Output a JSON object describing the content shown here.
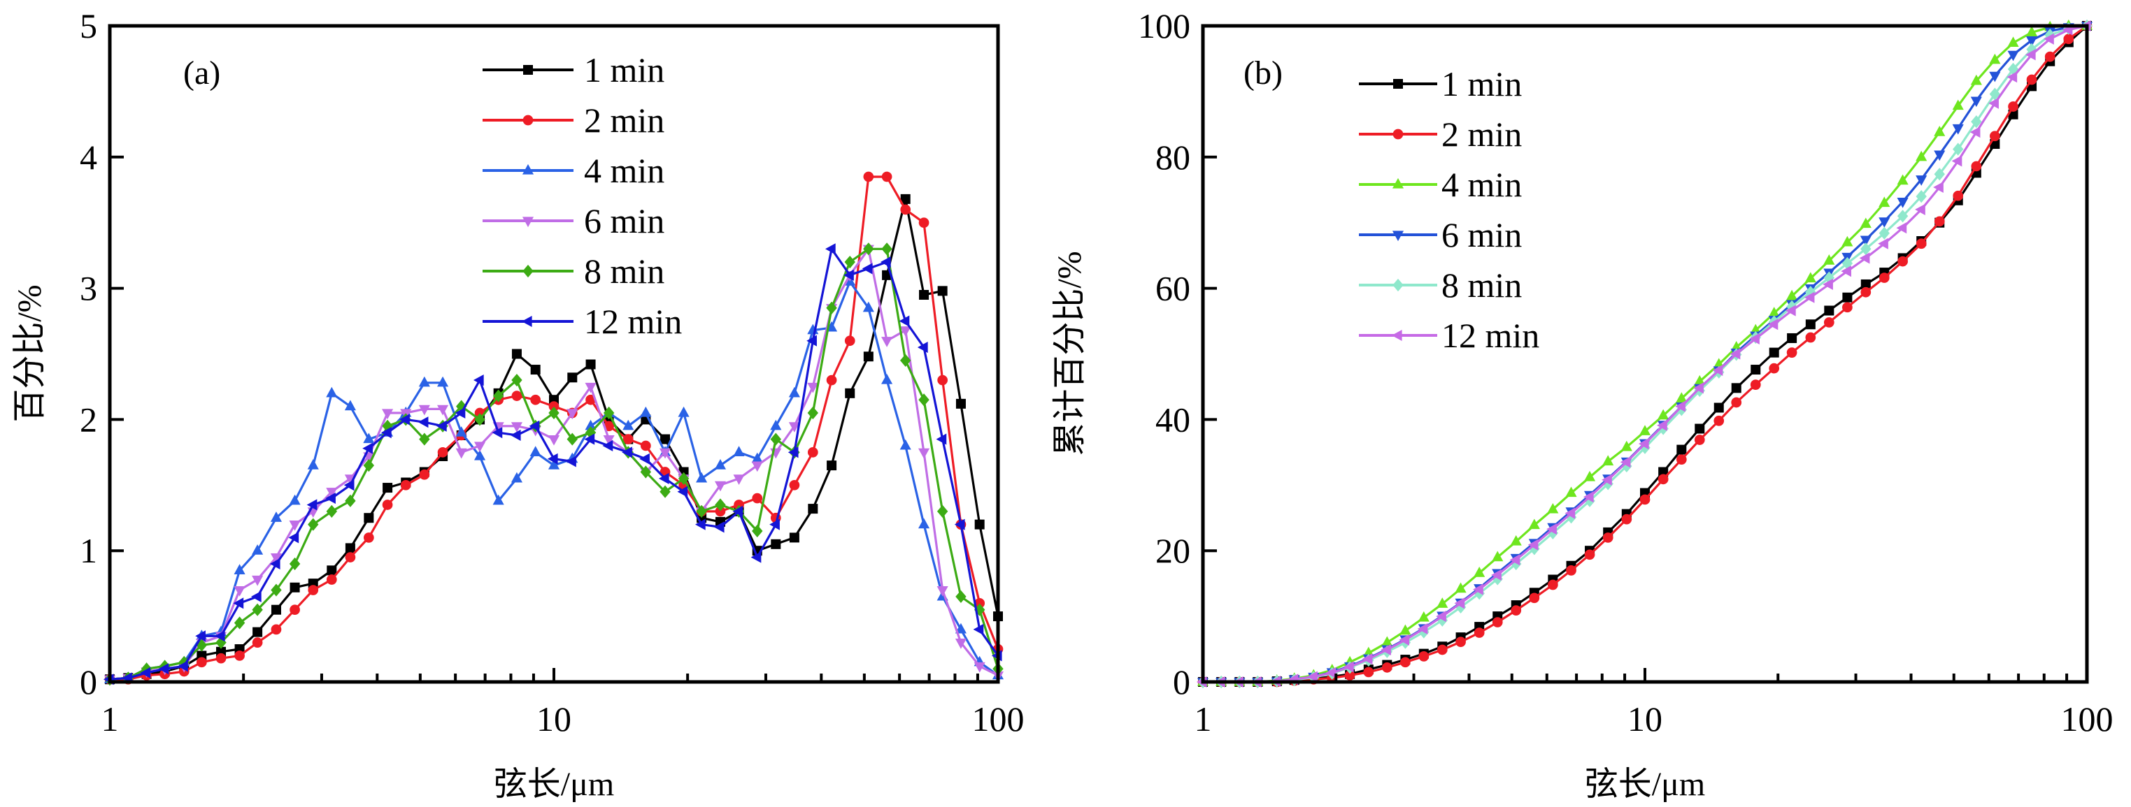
{
  "chart_data": [
    {
      "type": "line",
      "panel_label": "(a)",
      "title": "",
      "xlabel": "弦长/μm",
      "ylabel": "百分比/%",
      "xscale": "log",
      "xlim": [
        1,
        100
      ],
      "ylim": [
        0,
        5
      ],
      "xticks": [
        "1",
        "10",
        "100"
      ],
      "yticks": [
        "0",
        "1",
        "2",
        "3",
        "4",
        "5"
      ],
      "grid": false,
      "legend_position": "top-center",
      "x": [
        1.0,
        1.1,
        1.21,
        1.33,
        1.47,
        1.61,
        1.78,
        1.96,
        2.15,
        2.37,
        2.61,
        2.87,
        3.16,
        3.48,
        3.83,
        4.22,
        4.64,
        5.11,
        5.62,
        6.19,
        6.81,
        7.5,
        8.25,
        9.09,
        10.0,
        11.0,
        12.1,
        13.3,
        14.7,
        16.1,
        17.8,
        19.6,
        21.5,
        23.7,
        26.1,
        28.7,
        31.6,
        34.8,
        38.3,
        42.2,
        46.4,
        51.1,
        56.2,
        61.9,
        68.1,
        75.0,
        82.5,
        90.9,
        100.0
      ],
      "series": [
        {
          "name": "1 min",
          "color": "#000000",
          "marker": "square",
          "values": [
            0.02,
            0.03,
            0.06,
            0.08,
            0.12,
            0.2,
            0.23,
            0.25,
            0.38,
            0.55,
            0.72,
            0.75,
            0.85,
            1.02,
            1.25,
            1.48,
            1.52,
            1.6,
            1.72,
            1.88,
            2.0,
            2.2,
            2.5,
            2.38,
            2.15,
            2.32,
            2.42,
            2.0,
            1.85,
            2.0,
            1.85,
            1.6,
            1.25,
            1.22,
            1.3,
            1.0,
            1.05,
            1.1,
            1.32,
            1.65,
            2.2,
            2.48,
            3.1,
            3.68,
            2.95,
            2.98,
            2.12,
            1.2,
            0.5
          ]
        },
        {
          "name": "2 min",
          "color": "#ee1c25",
          "marker": "circle",
          "values": [
            0.02,
            0.02,
            0.05,
            0.06,
            0.08,
            0.15,
            0.18,
            0.2,
            0.3,
            0.4,
            0.55,
            0.7,
            0.78,
            0.95,
            1.1,
            1.35,
            1.5,
            1.58,
            1.75,
            1.88,
            2.05,
            2.15,
            2.18,
            2.15,
            2.1,
            2.05,
            2.15,
            1.95,
            1.85,
            1.8,
            1.6,
            1.5,
            1.3,
            1.3,
            1.35,
            1.4,
            1.25,
            1.5,
            1.75,
            2.3,
            2.6,
            3.85,
            3.85,
            3.6,
            3.5,
            2.3,
            1.2,
            0.6,
            0.25
          ]
        },
        {
          "name": "4 min",
          "color": "#2a62e6",
          "marker": "triangle-up",
          "values": [
            0.02,
            0.03,
            0.1,
            0.12,
            0.15,
            0.35,
            0.38,
            0.85,
            1.0,
            1.25,
            1.38,
            1.65,
            2.2,
            2.1,
            1.85,
            1.9,
            2.05,
            2.28,
            2.28,
            1.9,
            1.72,
            1.38,
            1.55,
            1.75,
            1.65,
            1.7,
            1.95,
            2.05,
            1.95,
            2.05,
            1.75,
            2.05,
            1.55,
            1.65,
            1.75,
            1.7,
            1.95,
            2.2,
            2.68,
            2.7,
            3.05,
            2.85,
            2.3,
            1.8,
            1.2,
            0.65,
            0.4,
            0.15,
            0.05
          ]
        },
        {
          "name": "6 min",
          "color": "#c06de6",
          "marker": "triangle-down",
          "values": [
            0.02,
            0.03,
            0.08,
            0.1,
            0.12,
            0.3,
            0.35,
            0.7,
            0.78,
            0.95,
            1.2,
            1.3,
            1.45,
            1.55,
            1.72,
            2.05,
            2.05,
            2.08,
            2.08,
            1.75,
            1.8,
            1.95,
            1.95,
            1.92,
            1.85,
            2.05,
            2.25,
            1.85,
            1.75,
            1.6,
            1.75,
            1.55,
            1.3,
            1.5,
            1.55,
            1.65,
            1.75,
            1.95,
            2.25,
            2.85,
            3.1,
            3.3,
            2.6,
            2.68,
            1.75,
            0.7,
            0.3,
            0.12,
            0.05
          ]
        },
        {
          "name": "8 min",
          "color": "#3cab14",
          "marker": "diamond",
          "values": [
            0.02,
            0.03,
            0.1,
            0.12,
            0.15,
            0.28,
            0.3,
            0.45,
            0.55,
            0.7,
            0.9,
            1.2,
            1.3,
            1.38,
            1.65,
            1.95,
            2.0,
            1.85,
            1.95,
            2.1,
            2.0,
            2.18,
            2.3,
            1.95,
            2.05,
            1.85,
            1.9,
            2.05,
            1.75,
            1.6,
            1.45,
            1.55,
            1.3,
            1.35,
            1.3,
            1.15,
            1.85,
            1.75,
            2.05,
            2.85,
            3.2,
            3.3,
            3.3,
            2.45,
            2.15,
            1.3,
            0.65,
            0.55,
            0.1
          ]
        },
        {
          "name": "12 min",
          "color": "#1414d6",
          "marker": "triangle-left",
          "values": [
            0.02,
            0.03,
            0.07,
            0.1,
            0.12,
            0.35,
            0.35,
            0.6,
            0.65,
            0.9,
            1.1,
            1.35,
            1.4,
            1.5,
            1.78,
            1.9,
            2.0,
            1.98,
            1.95,
            2.05,
            2.3,
            1.9,
            1.88,
            1.95,
            1.7,
            1.68,
            1.85,
            1.8,
            1.75,
            1.7,
            1.55,
            1.45,
            1.2,
            1.18,
            1.3,
            0.95,
            1.2,
            1.75,
            2.6,
            3.3,
            3.1,
            3.15,
            3.2,
            2.75,
            2.55,
            1.85,
            1.2,
            0.4,
            0.2
          ]
        }
      ]
    },
    {
      "type": "line",
      "panel_label": "(b)",
      "title": "",
      "xlabel": "弦长/μm",
      "ylabel": "累计百分比/%",
      "xscale": "log",
      "xlim": [
        1,
        100
      ],
      "ylim": [
        0,
        100
      ],
      "xticks": [
        "1",
        "10",
        "100"
      ],
      "yticks": [
        "0",
        "20",
        "40",
        "60",
        "80",
        "100"
      ],
      "grid": false,
      "legend_position": "top-left",
      "x": [
        1.0,
        1.1,
        1.21,
        1.33,
        1.47,
        1.61,
        1.78,
        1.96,
        2.15,
        2.37,
        2.61,
        2.87,
        3.16,
        3.48,
        3.83,
        4.22,
        4.64,
        5.11,
        5.62,
        6.19,
        6.81,
        7.5,
        8.25,
        9.09,
        10.0,
        11.0,
        12.1,
        13.3,
        14.7,
        16.1,
        17.8,
        19.6,
        21.5,
        23.7,
        26.1,
        28.7,
        31.6,
        34.8,
        38.3,
        42.2,
        46.4,
        51.1,
        56.2,
        61.9,
        68.1,
        75.0,
        82.5,
        90.9,
        100.0
      ],
      "series": [
        {
          "name": "1 min",
          "color": "#000000",
          "marker": "square",
          "values": [
            0,
            0,
            0,
            0,
            0.1,
            0.3,
            0.5,
            0.8,
            1.2,
            1.9,
            2.6,
            3.4,
            4.3,
            5.4,
            6.8,
            8.4,
            10.0,
            11.7,
            13.6,
            15.6,
            17.7,
            20.0,
            22.8,
            25.6,
            28.8,
            32.0,
            35.4,
            38.6,
            41.8,
            44.8,
            47.6,
            50.2,
            52.4,
            54.5,
            56.6,
            58.6,
            60.6,
            62.4,
            64.6,
            67.2,
            70.0,
            73.4,
            77.6,
            82.0,
            86.5,
            90.8,
            94.6,
            97.5,
            100
          ]
        },
        {
          "name": "2 min",
          "color": "#ee1c25",
          "marker": "circle",
          "values": [
            0,
            0,
            0,
            0,
            0,
            0.2,
            0.4,
            0.6,
            1.0,
            1.5,
            2.2,
            3.0,
            3.9,
            4.9,
            6.1,
            7.5,
            9.1,
            10.9,
            12.8,
            14.8,
            17.0,
            19.4,
            22.0,
            24.8,
            27.8,
            30.9,
            33.9,
            36.9,
            39.8,
            42.6,
            45.3,
            47.8,
            50.2,
            52.5,
            54.8,
            57.1,
            59.4,
            61.6,
            64.1,
            66.8,
            70.2,
            74.1,
            78.6,
            83.2,
            87.7,
            91.8,
            95.3,
            98.0,
            100
          ]
        },
        {
          "name": "4 min",
          "color": "#6ee61e",
          "marker": "triangle-up",
          "values": [
            0,
            0,
            0,
            0,
            0.2,
            0.5,
            1.0,
            1.8,
            3.0,
            4.4,
            6.0,
            7.8,
            9.8,
            11.9,
            14.2,
            16.6,
            19.0,
            21.4,
            23.9,
            26.3,
            28.8,
            31.2,
            33.6,
            35.8,
            38.2,
            40.6,
            43.2,
            45.8,
            48.4,
            51.0,
            53.6,
            56.2,
            58.8,
            61.5,
            64.2,
            67.0,
            69.8,
            73.0,
            76.4,
            80.0,
            83.8,
            87.8,
            91.6,
            94.8,
            97.4,
            99.0,
            99.8,
            100,
            100
          ]
        },
        {
          "name": "6 min",
          "color": "#2352d8",
          "marker": "triangle-down",
          "values": [
            0,
            0,
            0,
            0,
            0.1,
            0.4,
            0.8,
            1.5,
            2.4,
            3.6,
            5.0,
            6.5,
            8.2,
            10.1,
            12.1,
            14.3,
            16.6,
            18.9,
            21.2,
            23.6,
            26.0,
            28.5,
            31.0,
            33.6,
            36.4,
            39.2,
            42.0,
            44.8,
            47.5,
            50.2,
            52.8,
            55.2,
            57.6,
            60.0,
            62.4,
            64.8,
            67.4,
            70.2,
            73.2,
            76.6,
            80.4,
            84.4,
            88.6,
            92.4,
            95.6,
            97.8,
            99.2,
            99.8,
            100
          ]
        },
        {
          "name": "8 min",
          "color": "#8fe8cc",
          "marker": "diamond",
          "values": [
            0,
            0,
            0,
            0,
            0.1,
            0.3,
            0.7,
            1.3,
            2.2,
            3.3,
            4.6,
            6.0,
            7.6,
            9.4,
            11.4,
            13.5,
            15.7,
            18.0,
            20.3,
            22.7,
            25.1,
            27.6,
            30.2,
            32.9,
            35.7,
            38.6,
            41.5,
            44.4,
            47.2,
            49.9,
            52.5,
            54.9,
            57.2,
            59.4,
            61.6,
            63.8,
            66.0,
            68.4,
            71.0,
            74.0,
            77.4,
            81.2,
            85.4,
            89.6,
            93.4,
            96.4,
            98.6,
            99.6,
            100
          ]
        },
        {
          "name": "12 min",
          "color": "#c66ae6",
          "marker": "triangle-left",
          "values": [
            0,
            0,
            0,
            0,
            0.1,
            0.4,
            0.8,
            1.4,
            2.3,
            3.5,
            4.9,
            6.4,
            8.1,
            10.0,
            12.0,
            14.1,
            16.3,
            18.6,
            20.9,
            23.3,
            25.7,
            28.2,
            30.8,
            33.5,
            36.3,
            39.1,
            42.0,
            44.8,
            47.5,
            50.0,
            52.3,
            54.5,
            56.6,
            58.6,
            60.6,
            62.6,
            64.6,
            66.8,
            69.2,
            72.0,
            75.4,
            79.4,
            83.8,
            88.2,
            92.2,
            95.6,
            98.0,
            99.4,
            100
          ]
        }
      ]
    }
  ]
}
